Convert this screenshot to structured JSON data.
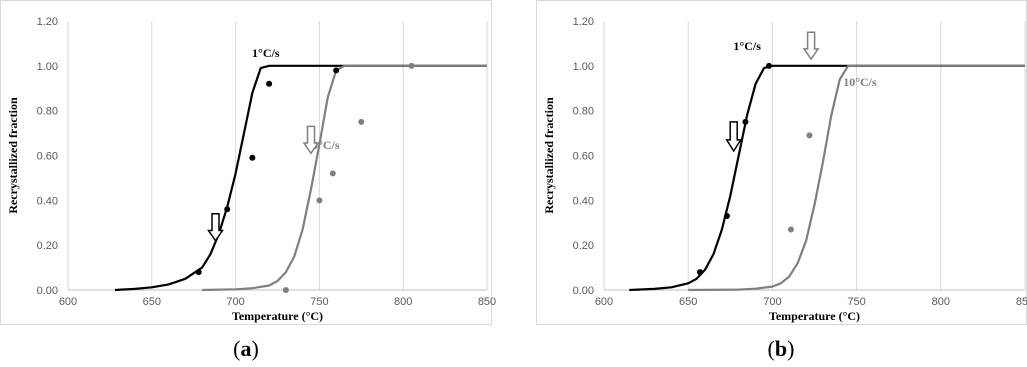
{
  "colors": {
    "black_series": "#000000",
    "gray_series": "#7f7f7f",
    "grid": "#d9d9d9"
  },
  "chart_data": [
    {
      "type": "line",
      "panel": "a",
      "xlabel": "Temperature (°C)",
      "ylabel": "Recrystallized fraction",
      "xlim": [
        600,
        850
      ],
      "ylim": [
        0,
        1.2
      ],
      "xticks": [
        "600",
        "650",
        "700",
        "750",
        "800",
        "850"
      ],
      "yticks": [
        "0.00",
        "0.20",
        "0.40",
        "0.60",
        "0.80",
        "1.00",
        "1.20"
      ],
      "grid": "vertical",
      "series": [
        {
          "name": "1°C/s",
          "color": "#000000",
          "model_x": [
            628,
            640,
            650,
            660,
            670,
            680,
            685,
            690,
            695,
            700,
            705,
            710,
            715,
            720,
            730,
            850
          ],
          "model_y": [
            0.0,
            0.005,
            0.012,
            0.025,
            0.05,
            0.1,
            0.16,
            0.25,
            0.37,
            0.52,
            0.7,
            0.88,
            0.99,
            1.0,
            1.0,
            1.0
          ],
          "points_x": [
            678,
            695,
            710,
            720,
            760
          ],
          "points_y": [
            0.08,
            0.36,
            0.59,
            0.92,
            0.98
          ]
        },
        {
          "name": "10°C/s",
          "color": "#7f7f7f",
          "model_x": [
            680,
            700,
            710,
            720,
            725,
            730,
            735,
            740,
            745,
            750,
            755,
            760,
            765,
            850
          ],
          "model_y": [
            0.0,
            0.003,
            0.008,
            0.02,
            0.04,
            0.08,
            0.15,
            0.27,
            0.45,
            0.65,
            0.86,
            0.98,
            1.0,
            1.0
          ],
          "points_x": [
            730,
            750,
            758,
            775,
            805
          ],
          "points_y": [
            0.0,
            0.4,
            0.52,
            0.75,
            1.0
          ]
        }
      ],
      "annotations": [
        {
          "text": "1°C/s",
          "x": 718,
          "y": 1.04,
          "color": "#000000"
        },
        {
          "text": "10°C/s",
          "x": 752,
          "y": 0.63,
          "color": "#7f7f7f"
        }
      ],
      "arrows": [
        {
          "x": 688,
          "y_top": 0.34,
          "y_bottom": 0.22,
          "color": "#000000"
        },
        {
          "x": 745,
          "y_top": 0.73,
          "y_bottom": 0.61,
          "color": "#7f7f7f"
        }
      ]
    },
    {
      "type": "line",
      "panel": "b",
      "xlabel": "Temperature (°C)",
      "ylabel": "Recrystallized fraction",
      "xlim": [
        600,
        850
      ],
      "ylim": [
        0,
        1.2
      ],
      "xticks": [
        "600",
        "650",
        "700",
        "750",
        "800",
        "850"
      ],
      "yticks": [
        "0.00",
        "0.20",
        "0.40",
        "0.60",
        "0.80",
        "1.00",
        "1.20"
      ],
      "grid": "vertical",
      "series": [
        {
          "name": "1°C/s",
          "color": "#000000",
          "model_x": [
            615,
            630,
            640,
            650,
            655,
            660,
            665,
            670,
            675,
            680,
            685,
            690,
            695,
            700,
            850
          ],
          "model_y": [
            0.0,
            0.005,
            0.012,
            0.03,
            0.05,
            0.09,
            0.16,
            0.27,
            0.42,
            0.6,
            0.78,
            0.92,
            0.99,
            1.0,
            1.0
          ],
          "points_x": [
            657,
            673,
            684,
            698
          ],
          "points_y": [
            0.08,
            0.33,
            0.75,
            1.0
          ]
        },
        {
          "name": "10°C/s",
          "color": "#7f7f7f",
          "model_x": [
            650,
            680,
            690,
            700,
            705,
            710,
            715,
            720,
            725,
            730,
            735,
            740,
            745,
            750,
            850
          ],
          "model_y": [
            0.0,
            0.002,
            0.006,
            0.015,
            0.03,
            0.06,
            0.12,
            0.22,
            0.38,
            0.57,
            0.78,
            0.94,
            1.0,
            1.0,
            1.0
          ],
          "points_x": [
            711,
            722
          ],
          "points_y": [
            0.27,
            0.69
          ]
        }
      ],
      "annotations": [
        {
          "text": "1°C/s",
          "x": 685,
          "y": 1.07,
          "color": "#000000"
        },
        {
          "text": "10°C/s",
          "x": 752,
          "y": 0.91,
          "color": "#7f7f7f"
        }
      ],
      "arrows": [
        {
          "x": 677,
          "y_top": 0.75,
          "y_bottom": 0.62,
          "color": "#000000"
        },
        {
          "x": 723,
          "y_top": 1.15,
          "y_bottom": 1.03,
          "color": "#7f7f7f"
        }
      ]
    }
  ],
  "captions": [
    {
      "open": "(",
      "letter": "a",
      "close": ")"
    },
    {
      "open": "(",
      "letter": "b",
      "close": ")"
    }
  ]
}
